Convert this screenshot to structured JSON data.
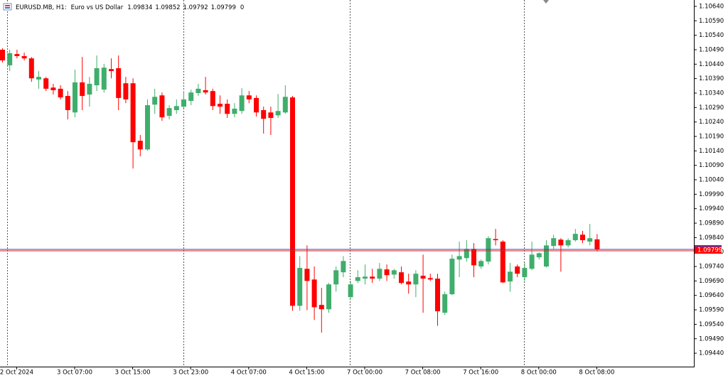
{
  "chart_data": {
    "type": "candlestick",
    "header": {
      "symbol": "EURUSD.MB, H1:",
      "description": "Euro vs US Dollar",
      "open": 1.09834,
      "high": 1.09852,
      "low": 1.09792,
      "close": 1.09799,
      "volume": 0
    },
    "last_price": 1.09799,
    "up_color": "#3fae6c",
    "down_color": "#ff0000",
    "bid_color": "#3344cc",
    "ask_color": "#dd2222",
    "categories": [
      null,
      null,
      "2 Oct 2024",
      null,
      null,
      null,
      null,
      null,
      null,
      null,
      "3 Oct 07:00",
      null,
      null,
      null,
      null,
      null,
      null,
      null,
      "3 Oct 15:00",
      null,
      null,
      null,
      null,
      null,
      null,
      null,
      "3 Oct 23:00",
      null,
      null,
      null,
      null,
      null,
      null,
      null,
      "4 Oct 07:00",
      null,
      null,
      null,
      null,
      null,
      null,
      null,
      "4 Oct 15:00",
      null,
      null,
      null,
      null,
      null,
      null,
      null,
      "7 Oct 00:00",
      null,
      null,
      null,
      null,
      null,
      null,
      null,
      "7 Oct 08:00",
      null,
      null,
      null,
      null,
      null,
      null,
      null,
      "7 Oct 16:00",
      null,
      null,
      null,
      null,
      null,
      null,
      null,
      "8 Oct 00:00",
      null,
      null,
      null,
      null,
      null,
      null,
      null,
      "8 Oct 08:00"
    ],
    "open": [
      1.1049,
      1.10436,
      1.10475,
      1.10468,
      1.1046,
      1.10387,
      1.10391,
      1.10359,
      1.10355,
      1.1033,
      1.10273,
      1.10377,
      1.10335,
      1.10367,
      1.10352,
      1.10423,
      1.10426,
      1.10374,
      1.10374,
      1.10175,
      1.10145,
      1.103,
      1.10332,
      1.10261,
      1.10281,
      1.10293,
      1.10313,
      1.1034,
      1.1035,
      1.10347,
      1.10303,
      1.10303,
      1.10268,
      1.10278,
      1.10332,
      1.10323,
      1.10281,
      1.10273,
      1.10263,
      1.10273,
      1.10325,
      1.09604,
      1.09732,
      1.09695,
      1.09607,
      1.09592,
      1.09678,
      1.0972,
      1.09634,
      1.0969,
      1.09698,
      1.09705,
      1.09698,
      1.0973,
      1.09712,
      1.0972,
      1.09688,
      1.09678,
      1.09708,
      1.097,
      1.09698,
      1.0958,
      1.09644,
      1.09764,
      1.09769,
      1.09801,
      1.0974,
      1.09757,
      1.09835,
      1.09826,
      1.09688,
      1.0974,
      1.09703,
      1.09732,
      1.09772,
      1.0974,
      1.09811,
      1.09833,
      1.09813,
      1.09831,
      1.0985,
      1.09826,
      1.09834
    ],
    "high": [
      1.10495,
      1.1049,
      1.1049,
      1.1048,
      1.10465,
      1.10416,
      1.10396,
      1.10372,
      1.10367,
      1.10347,
      1.10421,
      1.10465,
      1.10396,
      1.1047,
      1.10441,
      1.1046,
      1.1047,
      1.10396,
      1.10391,
      1.10195,
      1.10318,
      1.10355,
      1.10342,
      1.10298,
      1.10318,
      1.10347,
      1.10352,
      1.10372,
      1.10396,
      1.10355,
      1.10332,
      1.10318,
      1.10305,
      1.10357,
      1.10347,
      1.10332,
      1.10293,
      1.10293,
      1.10337,
      1.10367,
      1.1033,
      1.09776,
      1.09813,
      1.0974,
      1.09666,
      1.09683,
      1.0974,
      1.09776,
      1.0969,
      1.09727,
      1.09747,
      1.09732,
      1.09752,
      1.09747,
      1.09732,
      1.0974,
      1.09715,
      1.09727,
      1.09781,
      1.09715,
      1.09715,
      1.09653,
      1.09781,
      1.09826,
      1.09831,
      1.09821,
      1.09764,
      1.09845,
      1.0987,
      1.09831,
      1.09752,
      1.09747,
      1.09752,
      1.09826,
      1.09789,
      1.09831,
      1.0985,
      1.09838,
      1.09838,
      1.0987,
      1.09863,
      1.09887,
      1.09852
    ],
    "low": [
      1.10446,
      1.10416,
      1.1046,
      1.10453,
      1.10379,
      1.10355,
      1.10347,
      1.10335,
      1.10318,
      1.10249,
      1.10256,
      1.10281,
      1.10293,
      1.10347,
      1.10342,
      1.10391,
      1.10281,
      1.10305,
      1.10079,
      1.10121,
      1.10141,
      1.10268,
      1.10244,
      1.10249,
      1.10268,
      1.10288,
      1.10298,
      1.1033,
      1.10335,
      1.10281,
      1.10268,
      1.10254,
      1.10256,
      1.10268,
      1.10305,
      1.10259,
      1.102,
      1.10195,
      1.10254,
      1.10268,
      1.09587,
      1.09587,
      1.09589,
      1.09555,
      1.09511,
      1.0958,
      1.09653,
      1.09703,
      1.09629,
      1.09683,
      1.09678,
      1.09683,
      1.0969,
      1.0969,
      1.09698,
      1.09678,
      1.09646,
      1.09634,
      1.0958,
      1.0969,
      1.09535,
      1.09572,
      1.09641,
      1.09703,
      1.09757,
      1.09703,
      1.09732,
      1.09747,
      1.09813,
      1.09683,
      1.09653,
      1.09703,
      1.0969,
      1.09727,
      1.09764,
      1.09737,
      1.09801,
      1.09722,
      1.09806,
      1.09826,
      1.09821,
      1.09813,
      1.09792
    ],
    "close": [
      1.10453,
      1.10478,
      1.10468,
      1.1046,
      1.10391,
      1.10396,
      1.10355,
      1.1035,
      1.10325,
      1.10281,
      1.10377,
      1.1033,
      1.10372,
      1.10426,
      1.10428,
      1.10416,
      1.10323,
      1.10318,
      1.1017,
      1.10145,
      1.10298,
      1.10327,
      1.10256,
      1.10288,
      1.10295,
      1.10318,
      1.10342,
      1.10355,
      1.10342,
      1.10295,
      1.10293,
      1.10268,
      1.10286,
      1.10332,
      1.10318,
      1.10273,
      1.10251,
      1.10254,
      1.10278,
      1.10327,
      1.09604,
      1.09735,
      1.0969,
      1.09599,
      1.09592,
      1.09678,
      1.09727,
      1.09759,
      1.09678,
      1.09703,
      1.09705,
      1.09698,
      1.09732,
      1.0971,
      1.09727,
      1.09683,
      1.09678,
      1.09715,
      1.09698,
      1.09695,
      1.09585,
      1.09644,
      1.09767,
      1.09776,
      1.09801,
      1.09744,
      1.09759,
      1.09838,
      1.09831,
      1.09685,
      1.09722,
      1.09715,
      1.09735,
      1.09781,
      1.09786,
      1.09813,
      1.09838,
      1.09813,
      1.09831,
      1.09853,
      1.09831,
      1.09838,
      1.09799
    ],
    "ylim": [
      1.09396,
      1.10662
    ],
    "yticks": [
      {
        "value": 1.1064,
        "label": "1.10640"
      },
      {
        "value": 1.1059,
        "label": "1.10590"
      },
      {
        "value": 1.1054,
        "label": "1.10540"
      },
      {
        "value": 1.1049,
        "label": "1.10490"
      },
      {
        "value": 1.1044,
        "label": "1.10440"
      },
      {
        "value": 1.1039,
        "label": "1.10390"
      },
      {
        "value": 1.1034,
        "label": "1.10340"
      },
      {
        "value": 1.1029,
        "label": "1.10290"
      },
      {
        "value": 1.1024,
        "label": "1.10240"
      },
      {
        "value": 1.1019,
        "label": "1.10190"
      },
      {
        "value": 1.1014,
        "label": "1.10140"
      },
      {
        "value": 1.1009,
        "label": "1.10090"
      },
      {
        "value": 1.1004,
        "label": "1.10040"
      },
      {
        "value": 1.0999,
        "label": "1.09990"
      },
      {
        "value": 1.0994,
        "label": "1.09940"
      },
      {
        "value": 1.0989,
        "label": "1.09890"
      },
      {
        "value": 1.0984,
        "label": "1.09840"
      },
      {
        "value": 1.0979,
        "label": "1.09790"
      },
      {
        "value": 1.0974,
        "label": "1.09740"
      },
      {
        "value": 1.0969,
        "label": "1.09690"
      },
      {
        "value": 1.0964,
        "label": "1.09640"
      },
      {
        "value": 1.0959,
        "label": "1.09590"
      },
      {
        "value": 1.0954,
        "label": "1.09540"
      },
      {
        "value": 1.0949,
        "label": "1.09490"
      },
      {
        "value": 1.0944,
        "label": "1.09440"
      }
    ]
  }
}
